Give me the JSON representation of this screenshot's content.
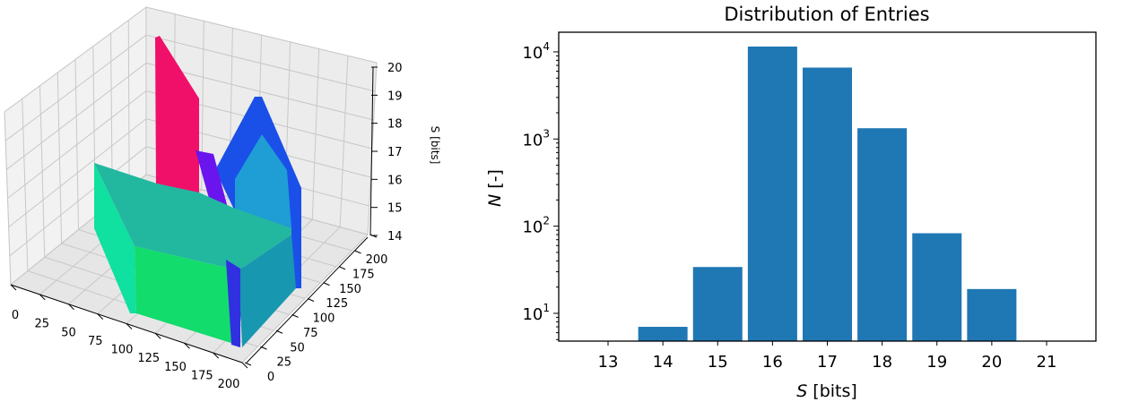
{
  "chart_data": [
    {
      "type": "bar3d",
      "title": "",
      "xlabel": "",
      "ylabel": "",
      "zlabel": "S [bits]",
      "xticks": [
        "0",
        "25",
        "50",
        "75",
        "100",
        "125",
        "150",
        "175",
        "200"
      ],
      "yticks": [
        "0",
        "25",
        "50",
        "75",
        "100",
        "125",
        "150",
        "175",
        "200"
      ],
      "zticks": [
        "14",
        "15",
        "16",
        "17",
        "18",
        "19",
        "20"
      ],
      "xlim": [
        0,
        200
      ],
      "ylim": [
        0,
        200
      ],
      "zlim": [
        14,
        20
      ],
      "grid": true,
      "colors": {
        "red": "#f0106a",
        "purple": "#6a10f0",
        "blue": "#1040f0",
        "teal": "#20c0b0",
        "green": "#10e070"
      }
    },
    {
      "type": "bar",
      "title": "Distribution of Entries",
      "xlabel_italic": "S",
      "xlabel_rest": " [bits]",
      "ylabel_italic": "N",
      "ylabel_rest": " [-]",
      "categories": [
        14,
        15,
        16,
        17,
        18,
        19,
        20
      ],
      "values": [
        7,
        34,
        11500,
        6600,
        1330,
        83,
        19
      ],
      "bar_width": 0.9,
      "xticks": [
        "13",
        "14",
        "15",
        "16",
        "17",
        "18",
        "19",
        "20",
        "21"
      ],
      "yticks": [
        {
          "base": "10",
          "exp": "1",
          "value": 10
        },
        {
          "base": "10",
          "exp": "2",
          "value": 100
        },
        {
          "base": "10",
          "exp": "3",
          "value": 1000
        },
        {
          "base": "10",
          "exp": "4",
          "value": 10000
        }
      ],
      "xlim": [
        12.1,
        21.9
      ],
      "ylim": [
        4.8,
        16800
      ],
      "yscale": "log",
      "grid": false,
      "color": "#1f77b4"
    }
  ]
}
